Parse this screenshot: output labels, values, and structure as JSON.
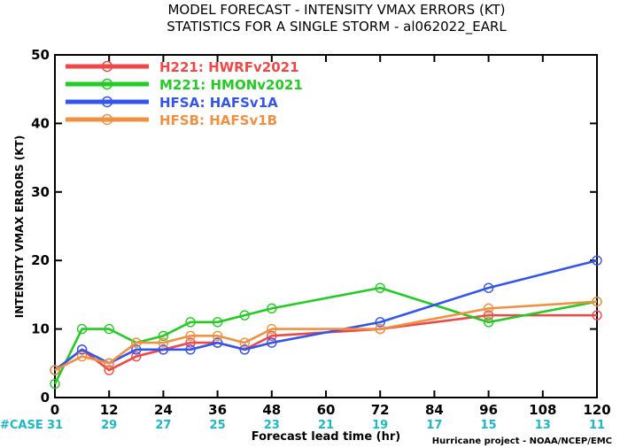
{
  "header": {
    "title_line1": "MODEL FORECAST - INTENSITY VMAX ERRORS (KT)",
    "title_line2": "STATISTICS FOR A SINGLE STORM - al062022_EARL"
  },
  "footer": {
    "credit": "Hurricane project - NOAA/NCEP/EMC"
  },
  "chart_data": {
    "type": "line",
    "xlabel": "Forecast lead time (hr)",
    "ylabel": "INTENSITY VMAX ERRORS (KT)",
    "xlim": [
      0,
      120
    ],
    "ylim": [
      0,
      50
    ],
    "xticks": [
      0,
      12,
      24,
      36,
      48,
      60,
      72,
      84,
      96,
      108,
      120
    ],
    "yticks": [
      0,
      10,
      20,
      30,
      40,
      50
    ],
    "grid": false,
    "legend_position": "top-left",
    "x": [
      0,
      6,
      12,
      18,
      24,
      30,
      36,
      42,
      48,
      72,
      96,
      120
    ],
    "series": [
      {
        "name": "H221: HWRFv2021",
        "color": "#f04848",
        "values": [
          4,
          7,
          4,
          6,
          7,
          8,
          8,
          7,
          9,
          10,
          12,
          12
        ]
      },
      {
        "name": "M221: HMONv2021",
        "color": "#22cc22",
        "values": [
          2,
          10,
          10,
          8,
          9,
          11,
          11,
          12,
          13,
          16,
          11,
          14
        ]
      },
      {
        "name": "HFSA: HAFSv1A",
        "color": "#3355ee",
        "values": [
          4,
          7,
          5,
          7,
          7,
          7,
          8,
          7,
          8,
          11,
          16,
          20
        ]
      },
      {
        "name": "HFSB: HAFSv1B",
        "color": "#f09040",
        "values": [
          4,
          6,
          5,
          8,
          8,
          9,
          9,
          8,
          10,
          10,
          13,
          14
        ]
      }
    ],
    "case_counts": {
      "label": "#CASE",
      "color": "#1cb8c8",
      "x": [
        0,
        12,
        24,
        36,
        48,
        60,
        72,
        84,
        96,
        108,
        120
      ],
      "values": [
        31,
        29,
        27,
        25,
        23,
        21,
        19,
        17,
        15,
        13,
        11
      ]
    }
  }
}
